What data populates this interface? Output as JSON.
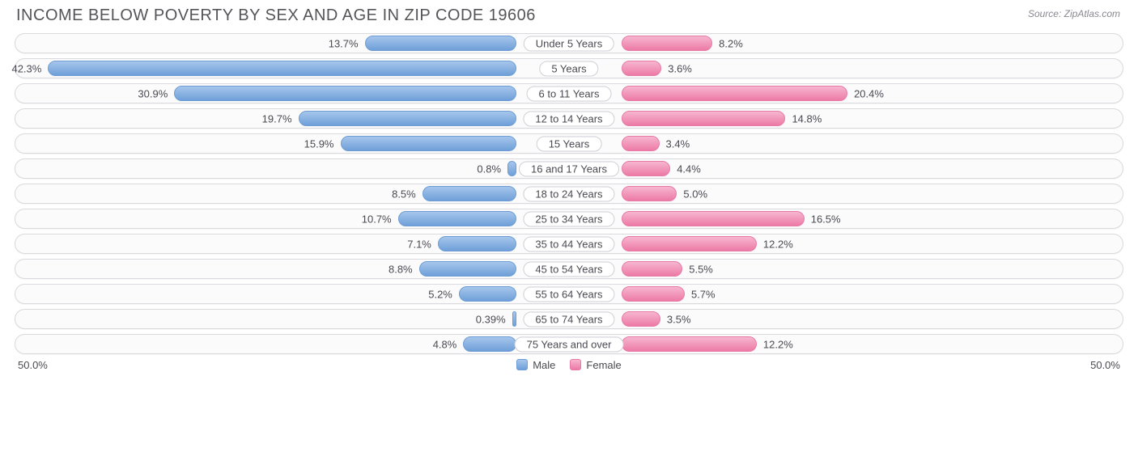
{
  "title": "INCOME BELOW POVERTY BY SEX AND AGE IN ZIP CODE 19606",
  "source": "Source: ZipAtlas.com",
  "axis_max": 50.0,
  "axis_left_label": "50.0%",
  "axis_right_label": "50.0%",
  "legend": {
    "male": "Male",
    "female": "Female"
  },
  "colors": {
    "male_top": "#a6c6ec",
    "male_bottom": "#6f9fd8",
    "male_border": "#6d9cd4",
    "female_top": "#f7b6cf",
    "female_bottom": "#ec7aa6",
    "female_border": "#e77aa4",
    "track_border": "#d9d9de",
    "track_bg": "#fbfbfc",
    "text": "#4a4a52",
    "title": "#555559",
    "source": "#888890",
    "background": "#ffffff"
  },
  "fonts": {
    "title_size_pt": 15,
    "label_size_pt": 10,
    "value_size_pt": 10
  },
  "rows": [
    {
      "category": "Under 5 Years",
      "male": 13.7,
      "female": 8.2,
      "male_label": "13.7%",
      "female_label": "8.2%"
    },
    {
      "category": "5 Years",
      "male": 42.3,
      "female": 3.6,
      "male_label": "42.3%",
      "female_label": "3.6%"
    },
    {
      "category": "6 to 11 Years",
      "male": 30.9,
      "female": 20.4,
      "male_label": "30.9%",
      "female_label": "20.4%"
    },
    {
      "category": "12 to 14 Years",
      "male": 19.7,
      "female": 14.8,
      "male_label": "19.7%",
      "female_label": "14.8%"
    },
    {
      "category": "15 Years",
      "male": 15.9,
      "female": 3.4,
      "male_label": "15.9%",
      "female_label": "3.4%"
    },
    {
      "category": "16 and 17 Years",
      "male": 0.8,
      "female": 4.4,
      "male_label": "0.8%",
      "female_label": "4.4%"
    },
    {
      "category": "18 to 24 Years",
      "male": 8.5,
      "female": 5.0,
      "male_label": "8.5%",
      "female_label": "5.0%"
    },
    {
      "category": "25 to 34 Years",
      "male": 10.7,
      "female": 16.5,
      "male_label": "10.7%",
      "female_label": "16.5%"
    },
    {
      "category": "35 to 44 Years",
      "male": 7.1,
      "female": 12.2,
      "male_label": "7.1%",
      "female_label": "12.2%"
    },
    {
      "category": "45 to 54 Years",
      "male": 8.8,
      "female": 5.5,
      "male_label": "8.8%",
      "female_label": "5.5%"
    },
    {
      "category": "55 to 64 Years",
      "male": 5.2,
      "female": 5.7,
      "male_label": "5.2%",
      "female_label": "5.7%"
    },
    {
      "category": "65 to 74 Years",
      "male": 0.39,
      "female": 3.5,
      "male_label": "0.39%",
      "female_label": "3.5%"
    },
    {
      "category": "75 Years and over",
      "male": 4.8,
      "female": 12.2,
      "male_label": "4.8%",
      "female_label": "12.2%"
    }
  ]
}
